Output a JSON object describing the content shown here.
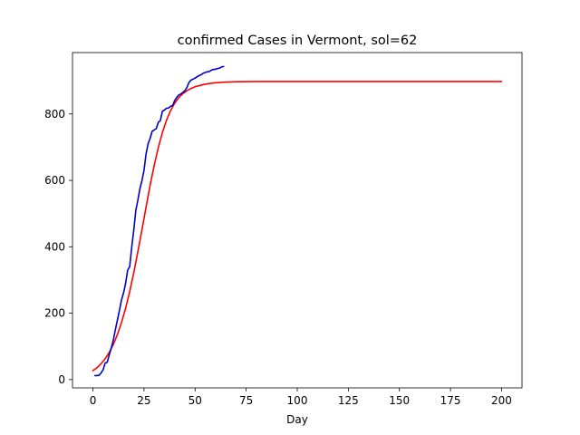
{
  "chart_data": {
    "type": "line",
    "title": "confirmed Cases in Vermont, sol=62",
    "xlabel": "Day",
    "ylabel": "",
    "xlim": [
      -10,
      210
    ],
    "ylim": [
      -25,
      985
    ],
    "xticks": [
      0,
      25,
      50,
      75,
      100,
      125,
      150,
      175,
      200
    ],
    "yticks": [
      0,
      200,
      400,
      600,
      800
    ],
    "grid": false,
    "legend": "none",
    "series": [
      {
        "color": "#ff0000",
        "kind": "fitted-curve",
        "x": [
          0,
          2,
          4,
          6,
          8,
          10,
          12,
          14,
          16,
          18,
          20,
          22,
          24,
          26,
          28,
          30,
          32,
          34,
          36,
          38,
          40,
          42,
          44,
          46,
          48,
          50,
          55,
          60,
          65,
          70,
          80,
          100,
          125,
          150,
          175,
          200
        ],
        "y": [
          27,
          36,
          48,
          63,
          82,
          106,
          136,
          172,
          215,
          265,
          322,
          385,
          452,
          520,
          586,
          646,
          699,
          744,
          781,
          810,
          832,
          849,
          861,
          870,
          877,
          882,
          890,
          894,
          896,
          897,
          898,
          898,
          898,
          898,
          898,
          898
        ]
      },
      {
        "color": "#0000cc",
        "kind": "observed",
        "x": [
          1,
          2,
          3,
          4,
          5,
          6,
          7,
          8,
          9,
          10,
          11,
          12,
          13,
          14,
          15,
          16,
          17,
          18,
          19,
          20,
          21,
          22,
          23,
          24,
          25,
          26,
          27,
          28,
          29,
          30,
          31,
          32,
          33,
          34,
          35,
          36,
          37,
          38,
          39,
          40,
          41,
          42,
          43,
          44,
          45,
          46,
          47,
          48,
          49,
          50,
          51,
          52,
          53,
          54,
          55,
          56,
          57,
          58,
          59,
          60,
          61,
          62,
          63,
          64
        ],
        "y": [
          12,
          12,
          13,
          20,
          30,
          50,
          52,
          75,
          95,
          120,
          150,
          180,
          210,
          240,
          262,
          290,
          330,
          340,
          400,
          450,
          510,
          540,
          575,
          600,
          630,
          680,
          710,
          727,
          748,
          752,
          756,
          775,
          780,
          808,
          812,
          817,
          818,
          823,
          825,
          840,
          850,
          857,
          860,
          865,
          870,
          880,
          895,
          902,
          905,
          908,
          912,
          916,
          918,
          923,
          925,
          927,
          928,
          932,
          934,
          935,
          937,
          938,
          942,
          943
        ]
      }
    ]
  }
}
